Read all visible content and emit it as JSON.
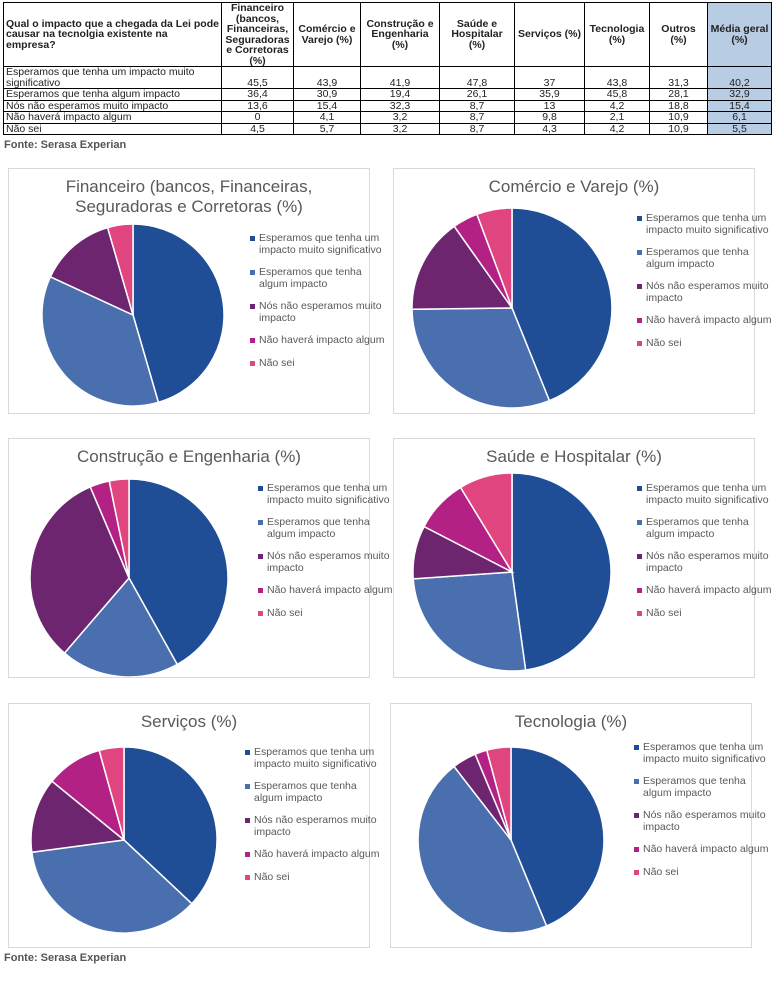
{
  "table": {
    "headers": [
      "Qual o impacto que a chegada da Lei pode causar na tecnolgia existente na empresa?",
      "Financeiro (bancos, Financeiras, Seguradoras e Corretoras (%)",
      "Comércio e Varejo (%)",
      "Construção e Engenharia (%)",
      "Saúde e Hospitalar (%)",
      "Serviços (%)",
      "Tecnologia (%)",
      "Outros (%)",
      "Média geral (%)"
    ],
    "rows": [
      {
        "label": "Esperamos que tenha um impacto muito significativo",
        "values": [
          "45,5",
          "43,9",
          "41,9",
          "47,8",
          "37",
          "43,8",
          "31,3",
          "40,2"
        ]
      },
      {
        "label": "Esperamos que tenha algum impacto",
        "values": [
          "36,4",
          "30,9",
          "19,4",
          "26,1",
          "35,9",
          "45,8",
          "28,1",
          "32,9"
        ]
      },
      {
        "label": "Nós não esperamos muito impacto",
        "values": [
          "13,6",
          "15,4",
          "32,3",
          "8,7",
          "13",
          "4,2",
          "18,8",
          "15,4"
        ]
      },
      {
        "label": "Não haverá impacto algum",
        "values": [
          "0",
          "4,1",
          "3,2",
          "8,7",
          "9,8",
          "2,1",
          "10,9",
          "6,1"
        ]
      },
      {
        "label": "Não sei",
        "values": [
          "4,5",
          "5,7",
          "3,2",
          "8,7",
          "4,3",
          "4,2",
          "10,9",
          "5,5"
        ]
      }
    ]
  },
  "source_top": "Fonte: Serasa Experian",
  "source_bottom": "Fonte: Serasa Experian",
  "legend_labels": [
    "Esperamos que tenha um impacto muito significativo",
    "Esperamos que tenha algum impacto",
    "Nós não esperamos muito impacto",
    "Não haverá impacto algum",
    "Não sei"
  ],
  "colors": [
    "#1f4e96",
    "#4a6fae",
    "#6e2570",
    "#b22183",
    "#e0457f"
  ],
  "chart_data": [
    {
      "type": "pie",
      "title": "Financeiro (bancos, Financeiras, Seguradoras e Corretoras (%)",
      "categories": [
        "Esperamos que tenha um impacto muito significativo",
        "Esperamos que tenha algum impacto",
        "Nós não esperamos muito impacto",
        "Não haverá impacto algum",
        "Não sei"
      ],
      "values": [
        45.5,
        36.4,
        13.6,
        0,
        4.5
      ]
    },
    {
      "type": "pie",
      "title": "Comércio e Varejo (%)",
      "categories": [
        "Esperamos que tenha um impacto muito significativo",
        "Esperamos que tenha algum impacto",
        "Nós não esperamos muito impacto",
        "Não haverá impacto algum",
        "Não sei"
      ],
      "values": [
        43.9,
        30.9,
        15.4,
        4.1,
        5.7
      ]
    },
    {
      "type": "pie",
      "title": "Construção e Engenharia (%)",
      "categories": [
        "Esperamos que tenha um impacto muito significativo",
        "Esperamos que tenha algum impacto",
        "Nós não esperamos muito impacto",
        "Não haverá impacto algum",
        "Não sei"
      ],
      "values": [
        41.9,
        19.4,
        32.3,
        3.2,
        3.2
      ]
    },
    {
      "type": "pie",
      "title": "Saúde e Hospitalar (%)",
      "categories": [
        "Esperamos que tenha um impacto muito significativo",
        "Esperamos que tenha algum impacto",
        "Nós não esperamos muito impacto",
        "Não haverá impacto algum",
        "Não sei"
      ],
      "values": [
        47.8,
        26.1,
        8.7,
        8.7,
        8.7
      ]
    },
    {
      "type": "pie",
      "title": "Serviços (%)",
      "categories": [
        "Esperamos que tenha um impacto muito significativo",
        "Esperamos que tenha algum impacto",
        "Nós não esperamos muito impacto",
        "Não haverá impacto algum",
        "Não sei"
      ],
      "values": [
        37,
        35.9,
        13,
        9.8,
        4.3
      ]
    },
    {
      "type": "pie",
      "title": "Tecnologia (%)",
      "categories": [
        "Esperamos que tenha um impacto muito significativo",
        "Esperamos que tenha algum impacto",
        "Nós não esperamos muito impacto",
        "Não haverá impacto algum",
        "Não sei"
      ],
      "values": [
        43.8,
        45.8,
        4.2,
        2.1,
        4.2
      ]
    }
  ]
}
